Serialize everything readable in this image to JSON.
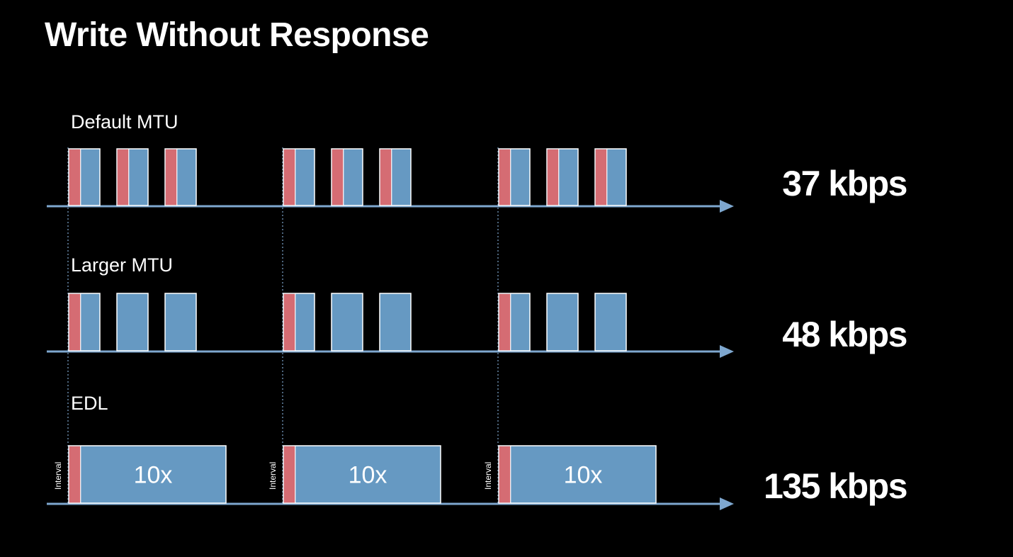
{
  "title": "Write Without Response",
  "colors": {
    "background": "#000000",
    "text": "#ffffff",
    "header_segment": "#d56c73",
    "payload_segment": "#6699c2",
    "axis": "#7ea7cf",
    "guide_line": "#7ea7cf"
  },
  "rows": [
    {
      "label": "Default MTU",
      "rate": "37 kbps",
      "intervals": [
        {
          "packets": [
            {
              "header": true
            },
            {
              "header": true
            },
            {
              "header": true
            }
          ]
        },
        {
          "packets": [
            {
              "header": true
            },
            {
              "header": true
            },
            {
              "header": true
            }
          ]
        },
        {
          "packets": [
            {
              "header": true
            },
            {
              "header": true
            },
            {
              "header": true
            }
          ]
        }
      ]
    },
    {
      "label": "Larger MTU",
      "rate": "48 kbps",
      "intervals": [
        {
          "packets": [
            {
              "header": true
            },
            {
              "header": false
            },
            {
              "header": false
            }
          ]
        },
        {
          "packets": [
            {
              "header": true
            },
            {
              "header": false
            },
            {
              "header": false
            }
          ]
        },
        {
          "packets": [
            {
              "header": true
            },
            {
              "header": false
            },
            {
              "header": false
            }
          ]
        }
      ]
    },
    {
      "label": "EDL",
      "rate": "135 kbps",
      "intervals": [
        {
          "interval_label": "Interval",
          "packets": [
            {
              "header": true,
              "text": "10x"
            }
          ]
        },
        {
          "interval_label": "Interval",
          "packets": [
            {
              "header": true,
              "text": "10x"
            }
          ]
        },
        {
          "interval_label": "Interval",
          "packets": [
            {
              "header": true,
              "text": "10x"
            }
          ]
        }
      ]
    }
  ]
}
